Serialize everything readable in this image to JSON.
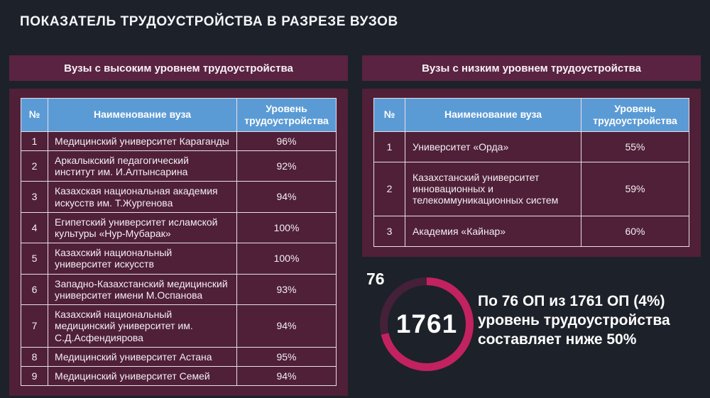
{
  "title": "ПОКАЗАТЕЛЬ ТРУДОУСТРОЙСТВА В РАЗРЕЗЕ ВУЗОВ",
  "colors": {
    "background": "#1d212a",
    "band_maroon": "#5a2342",
    "panel_maroon": "#4f2038",
    "table_header_blue": "#5b9bd5",
    "table_border": "#e9dfe6",
    "donut_main": "#c22260",
    "donut_dark_segment": "#452039",
    "text": "#ffffff"
  },
  "left_section": {
    "heading": "Вузы с высоким уровнем трудоустройства",
    "columns": [
      "№",
      "Наименование вуза",
      "Уровень трудоустройства"
    ],
    "rows": [
      {
        "num": "1",
        "name": "Медицинский университет Караганды",
        "value": "96%"
      },
      {
        "num": "2",
        "name": "Аркалыкский педагогический институт им. И.Алтынсарина",
        "value": "92%"
      },
      {
        "num": "3",
        "name": "Казахская национальная академия искусств им. Т.Жургенова",
        "value": "94%"
      },
      {
        "num": "4",
        "name": "Египетский университет исламской культуры «Нур-Мубарак»",
        "value": "100%"
      },
      {
        "num": "5",
        "name": "Казахский национальный университет искусств",
        "value": "100%"
      },
      {
        "num": "6",
        "name": "Западно-Казахстанский медицинский университет имени М.Оспанова",
        "value": "93%"
      },
      {
        "num": "7",
        "name": "Казахский национальный медицинский университет им. С.Д.Асфендиярова",
        "value": "94%"
      },
      {
        "num": "8",
        "name": "Медицинский университет Астана",
        "value": "95%"
      },
      {
        "num": "9",
        "name": "Медицинский университет Семей",
        "value": "94%"
      }
    ]
  },
  "right_section": {
    "heading": "Вузы с низким уровнем трудоустройства",
    "columns": [
      "№",
      "Наименование вуза",
      "Уровень трудоустройства"
    ],
    "rows": [
      {
        "num": "1",
        "name": "Университет «Орда»",
        "value": "55%"
      },
      {
        "num": "2",
        "name": "Казахстанский университет инновационных и телекоммуникационных систем",
        "value": "59%"
      },
      {
        "num": "3",
        "name": "Академия «Кайнар»",
        "value": "60%"
      }
    ]
  },
  "stat": {
    "outside_label": "76",
    "center_value": "1761",
    "numerator": 76,
    "denominator": 1761,
    "percent": "4%",
    "description": "По 76 ОП из 1761 ОП (4%)\nуровень трудоустройства\nсоставляет ниже 50%"
  }
}
